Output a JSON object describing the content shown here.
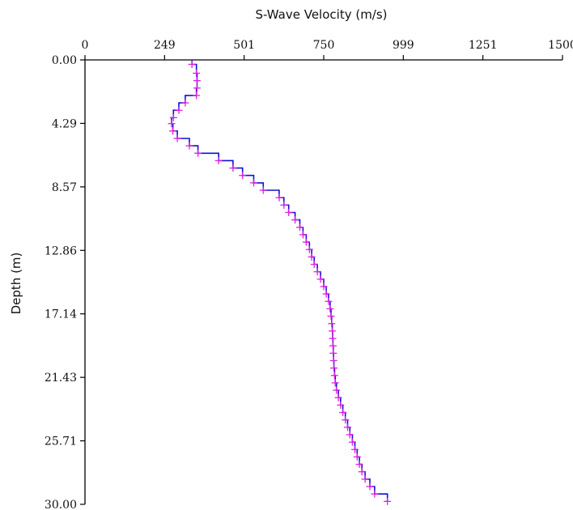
{
  "chart_data": {
    "type": "line",
    "title": "",
    "xlabel": "S-Wave Velocity (m/s)",
    "ylabel": "Depth (m)",
    "x_axis_position": "top",
    "y_axis_inverted": true,
    "xlim": [
      0,
      1500
    ],
    "ylim": [
      0,
      30
    ],
    "x_tick_labels": [
      "0",
      "249",
      "501",
      "750",
      "999",
      "1251",
      "1500"
    ],
    "y_tick_labels": [
      "0.00",
      "4.29",
      "8.57",
      "12.86",
      "17.14",
      "21.43",
      "25.71",
      "30.00"
    ],
    "grid": false,
    "colors": {
      "step_line": "#1010d0",
      "markers": "#e020e0",
      "axes": "#000000"
    },
    "series": [
      {
        "type": "step",
        "depth": [
          0.3,
          0.9,
          1.4,
          1.9,
          2.4,
          2.9,
          3.4,
          3.9,
          4.3,
          4.8,
          5.3,
          5.8,
          6.3,
          6.8,
          7.3,
          7.8,
          8.3,
          8.8,
          9.3,
          9.8,
          10.3,
          10.8,
          11.3,
          11.8,
          12.3,
          12.8,
          13.3,
          13.8,
          14.3,
          14.8,
          15.3,
          15.8,
          16.3,
          16.8,
          17.3,
          17.8,
          18.3,
          18.8,
          19.3,
          19.8,
          20.3,
          20.8,
          21.3,
          21.8,
          22.3,
          22.8,
          23.3,
          23.8,
          24.3,
          24.8,
          25.3,
          25.8,
          26.3,
          26.8,
          27.3,
          27.8,
          28.3,
          28.8,
          29.3,
          29.8
        ],
        "velocity": [
          336,
          350,
          352,
          352,
          350,
          315,
          295,
          278,
          272,
          276,
          290,
          328,
          355,
          420,
          465,
          495,
          530,
          560,
          610,
          625,
          640,
          660,
          675,
          685,
          695,
          705,
          712,
          720,
          730,
          740,
          750,
          758,
          765,
          770,
          773,
          775,
          777,
          778,
          779,
          780,
          781,
          782,
          784,
          786,
          790,
          796,
          803,
          810,
          818,
          825,
          832,
          840,
          848,
          855,
          862,
          870,
          880,
          895,
          910,
          950
        ]
      },
      {
        "type": "marker",
        "depth": [
          0.3,
          0.9,
          1.4,
          1.9,
          2.4,
          2.9,
          3.4,
          3.9,
          4.3,
          4.8,
          5.3,
          5.8,
          6.3,
          6.8,
          7.3,
          7.8,
          8.3,
          8.8,
          9.3,
          9.8,
          10.3,
          10.8,
          11.3,
          11.8,
          12.3,
          12.8,
          13.3,
          13.8,
          14.3,
          14.8,
          15.3,
          15.8,
          16.3,
          16.8,
          17.3,
          17.8,
          18.3,
          18.8,
          19.3,
          19.8,
          20.3,
          20.8,
          21.3,
          21.8,
          22.3,
          22.8,
          23.3,
          23.8,
          24.3,
          24.8,
          25.3,
          25.8,
          26.3,
          26.8,
          27.3,
          27.8,
          28.3,
          28.8,
          29.3,
          29.8
        ],
        "velocity": [
          336,
          350,
          352,
          352,
          350,
          315,
          295,
          278,
          272,
          276,
          290,
          328,
          355,
          420,
          465,
          495,
          530,
          560,
          610,
          625,
          640,
          660,
          675,
          685,
          695,
          705,
          712,
          720,
          730,
          740,
          750,
          758,
          765,
          770,
          773,
          775,
          777,
          778,
          779,
          780,
          781,
          782,
          784,
          786,
          790,
          796,
          803,
          810,
          818,
          825,
          832,
          840,
          848,
          855,
          862,
          870,
          880,
          895,
          910,
          950
        ]
      }
    ]
  }
}
